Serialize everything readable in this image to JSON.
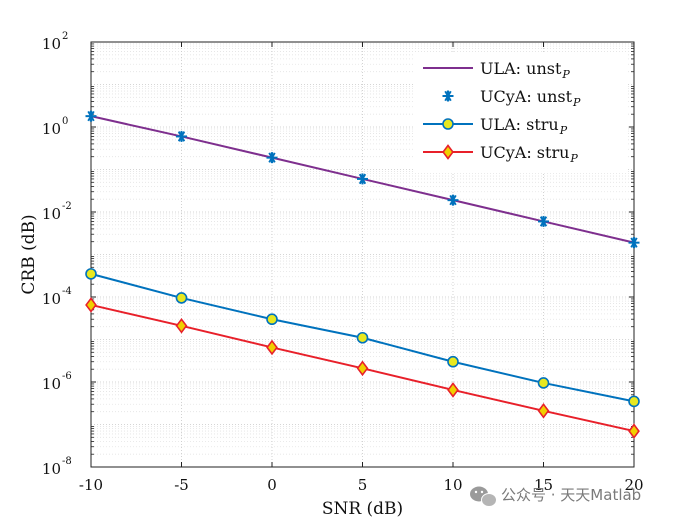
{
  "chart_data": {
    "type": "line",
    "title": "",
    "xlabel": "SNR (dB)",
    "ylabel": "CRB (dB)",
    "yscale": "log",
    "x": [
      -10,
      -5,
      0,
      5,
      10,
      15,
      20
    ],
    "xlim": [
      -10,
      20
    ],
    "ylim_exp": [
      -8,
      2
    ],
    "x_ticks": [
      "-10",
      "-5",
      "0",
      "5",
      "10",
      "15",
      "20"
    ],
    "y_ticks": [
      {
        "base": "10",
        "exp": "2"
      },
      {
        "base": "10",
        "exp": "0"
      },
      {
        "base": "10",
        "exp": "-2"
      },
      {
        "base": "10",
        "exp": "-4"
      },
      {
        "base": "10",
        "exp": "-6"
      },
      {
        "base": "10",
        "exp": "-8"
      }
    ],
    "grid": true,
    "legend_position": "top-right",
    "series": [
      {
        "name": "ULA: unst",
        "subscript": "P",
        "color": "#7e2f8e",
        "marker": "none",
        "line": true,
        "values": [
          1.8,
          0.6,
          0.19,
          0.06,
          0.019,
          0.006,
          0.0019
        ]
      },
      {
        "name": "UCyA: unst",
        "subscript": "P",
        "color": "#0072bd",
        "marker": "asterisk",
        "line": false,
        "values": [
          1.8,
          0.6,
          0.19,
          0.06,
          0.019,
          0.006,
          0.0019
        ]
      },
      {
        "name": "ULA: stru",
        "subscript": "P",
        "color": "#0072bd",
        "marker_fill": "#e8e820",
        "marker": "circle",
        "line": true,
        "values": [
          0.00035,
          9.5e-05,
          3e-05,
          1.1e-05,
          3e-06,
          9.5e-07,
          3.5e-07
        ]
      },
      {
        "name": "UCyA: stru",
        "subscript": "P",
        "color": "#e8202a",
        "marker_fill": "#f0d000",
        "marker": "diamond",
        "line": true,
        "values": [
          6.5e-05,
          2.1e-05,
          6.5e-06,
          2.1e-06,
          6.5e-07,
          2.1e-07,
          7e-08
        ]
      }
    ]
  },
  "watermark": {
    "text": "公众号 · 天天Matlab",
    "icon": "wechat-icon"
  }
}
